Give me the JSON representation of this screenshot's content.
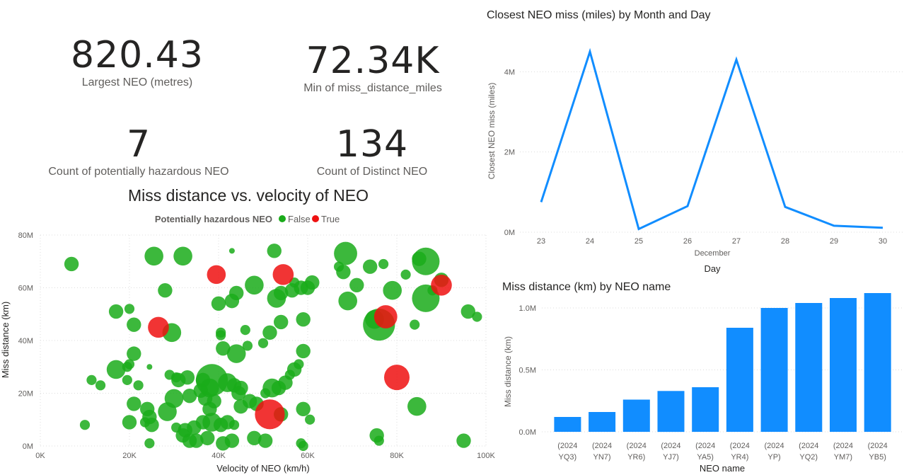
{
  "kpis": {
    "largest": {
      "value": "820.43",
      "label": "Largest NEO (metres)"
    },
    "min_miss": {
      "value": "72.34K",
      "label": "Min of miss_distance_miles"
    },
    "hazardous": {
      "value": "7",
      "label": "Count of potentially hazardous NEO"
    },
    "distinct": {
      "value": "134",
      "label": "Count of Distinct NEO"
    }
  },
  "colors": {
    "false": "#1aab1a",
    "true": "#ee1111",
    "line": "#118dff",
    "bar": "#118dff"
  },
  "chart_data": [
    {
      "type": "scatter",
      "title": "Miss distance vs. velocity of NEO",
      "legend_title": "Potentially hazardous NEO",
      "legend": [
        "False",
        "True"
      ],
      "xlabel": "Velocity of NEO (km/h)",
      "ylabel": "Miss distance (km)",
      "xlim": [
        0,
        100000
      ],
      "ylim": [
        0,
        80000000
      ],
      "x_ticks": [
        "0K",
        "20K",
        "40K",
        "60K",
        "80K",
        "100K"
      ],
      "y_ticks": [
        "0M",
        "20M",
        "40M",
        "60M",
        "80M"
      ],
      "series": [
        {
          "name": "False",
          "points": [
            [
              7000,
              69,
              2
            ],
            [
              25500,
              72,
              3
            ],
            [
              32000,
              72,
              3
            ],
            [
              43000,
              74,
              0
            ],
            [
              52500,
              74,
              2
            ],
            [
              68500,
              73,
              4
            ],
            [
              86500,
              70,
              5
            ],
            [
              85000,
              71,
              2
            ],
            [
              77000,
              69,
              1
            ],
            [
              74000,
              68,
              2
            ],
            [
              82000,
              65,
              1
            ],
            [
              67000,
              68,
              1
            ],
            [
              68000,
              66,
              2
            ],
            [
              71000,
              61,
              2
            ],
            [
              57000,
              62,
              1
            ],
            [
              61000,
              62,
              2
            ],
            [
              60000,
              60,
              2
            ],
            [
              58500,
              60,
              2
            ],
            [
              56500,
              59,
              2
            ],
            [
              54000,
              58,
              2
            ],
            [
              53000,
              56,
              3
            ],
            [
              48000,
              61,
              3
            ],
            [
              44000,
              58,
              2
            ],
            [
              28000,
              59,
              2
            ],
            [
              40000,
              54,
              2
            ],
            [
              43000,
              55,
              2
            ],
            [
              79000,
              59,
              3
            ],
            [
              86500,
              56,
              5
            ],
            [
              88000,
              59,
              1
            ],
            [
              90000,
              63,
              2
            ],
            [
              96000,
              51,
              2
            ],
            [
              98000,
              49,
              1
            ],
            [
              75000,
              48,
              3
            ],
            [
              76000,
              46,
              6
            ],
            [
              84000,
              46,
              1
            ],
            [
              69000,
              55,
              3
            ],
            [
              17000,
              51,
              2
            ],
            [
              20000,
              52,
              1
            ],
            [
              21000,
              46,
              2
            ],
            [
              29500,
              43,
              3
            ],
            [
              40500,
              43,
              1
            ],
            [
              40500,
              42,
              1
            ],
            [
              46000,
              44,
              1
            ],
            [
              51500,
              43,
              2
            ],
            [
              54000,
              47,
              2
            ],
            [
              59000,
              48,
              2
            ],
            [
              46500,
              38,
              1
            ],
            [
              41000,
              37,
              2
            ],
            [
              44000,
              35,
              3
            ],
            [
              50000,
              39,
              1
            ],
            [
              59000,
              36,
              2
            ],
            [
              21000,
              35,
              2
            ],
            [
              17000,
              29,
              3
            ],
            [
              19500,
              30,
              1
            ],
            [
              20000,
              31,
              1
            ],
            [
              24500,
              30,
              0
            ],
            [
              11500,
              25,
              1
            ],
            [
              13500,
              23,
              1
            ],
            [
              19500,
              25,
              1
            ],
            [
              22000,
              23,
              1
            ],
            [
              29000,
              27,
              1
            ],
            [
              30500,
              26,
              1
            ],
            [
              31000,
              25,
              2
            ],
            [
              33000,
              26,
              2
            ],
            [
              36500,
              25,
              2
            ],
            [
              38500,
              25,
              6
            ],
            [
              42000,
              24,
              3
            ],
            [
              43500,
              23,
              2
            ],
            [
              45000,
              22,
              2
            ],
            [
              38000,
              22,
              3
            ],
            [
              36000,
              21,
              2
            ],
            [
              33500,
              19,
              2
            ],
            [
              37000,
              18,
              2
            ],
            [
              39000,
              17,
              2
            ],
            [
              30000,
              18,
              3
            ],
            [
              28500,
              13,
              3
            ],
            [
              21000,
              16,
              2
            ],
            [
              24000,
              14,
              2
            ],
            [
              24500,
              11,
              2
            ],
            [
              23500,
              9,
              1
            ],
            [
              25000,
              8,
              2
            ],
            [
              20000,
              9,
              2
            ],
            [
              10000,
              8,
              1
            ],
            [
              30500,
              7,
              1
            ],
            [
              32500,
              6,
              2
            ],
            [
              34500,
              7,
              2
            ],
            [
              36500,
              9,
              2
            ],
            [
              38500,
              9,
              3
            ],
            [
              40500,
              8,
              2
            ],
            [
              42000,
              9,
              2
            ],
            [
              43500,
              8,
              1
            ],
            [
              45000,
              15,
              2
            ],
            [
              47000,
              17,
              2
            ],
            [
              48500,
              16,
              2
            ],
            [
              50500,
              20,
              1
            ],
            [
              52000,
              22,
              3
            ],
            [
              53500,
              22,
              2
            ],
            [
              55000,
              24,
              2
            ],
            [
              56000,
              27,
              1
            ],
            [
              57000,
              29,
              2
            ],
            [
              58000,
              31,
              1
            ],
            [
              59000,
              14,
              2
            ],
            [
              60500,
              10,
              1
            ],
            [
              54000,
              12,
              2
            ],
            [
              44500,
              20,
              2
            ],
            [
              38000,
              14,
              2
            ],
            [
              32000,
              4,
              2
            ],
            [
              33500,
              2,
              2
            ],
            [
              35000,
              2,
              2
            ],
            [
              37500,
              3,
              2
            ],
            [
              41000,
              1,
              2
            ],
            [
              43000,
              2,
              2
            ],
            [
              48000,
              3,
              2
            ],
            [
              50500,
              2,
              2
            ],
            [
              58500,
              1,
              1
            ],
            [
              59000,
              0,
              1
            ],
            [
              24500,
              1,
              1
            ],
            [
              84500,
              15,
              3
            ],
            [
              75500,
              4,
              2
            ],
            [
              76000,
              2,
              1
            ],
            [
              95000,
              2,
              2
            ]
          ]
        },
        {
          "name": "True",
          "points": [
            [
              39500,
              65,
              3
            ],
            [
              54500,
              65,
              3.5
            ],
            [
              26500,
              45,
              3.5
            ],
            [
              77500,
              49,
              4
            ],
            [
              80000,
              26,
              4.5
            ],
            [
              51500,
              12,
              5.5
            ],
            [
              90000,
              61,
              3.5
            ]
          ]
        }
      ]
    },
    {
      "type": "line",
      "title": "Closest NEO miss (miles) by Month and Day",
      "categories": [
        "23",
        "24",
        "25",
        "26",
        "27",
        "28",
        "29",
        "30"
      ],
      "values": [
        750000,
        4500000,
        80000,
        650000,
        4300000,
        630000,
        160000,
        110000
      ],
      "xlabel": "Day",
      "x_group_label": "December",
      "ylabel": "Closest NEO miss (miles)",
      "ylim": [
        0,
        4500000
      ],
      "y_ticks": [
        "0M",
        "2M",
        "4M"
      ]
    },
    {
      "type": "bar",
      "title": "Miss distance (km) by NEO name",
      "categories": [
        [
          "(2024",
          "YQ3)"
        ],
        [
          "(2024",
          "YN7)"
        ],
        [
          "(2024",
          "YR6)"
        ],
        [
          "(2024",
          "YJ7)"
        ],
        [
          "(2024",
          "YA5)"
        ],
        [
          "(2024",
          "YR4)"
        ],
        [
          "(2024",
          "YP)"
        ],
        [
          "(2024",
          "YQ2)"
        ],
        [
          "(2024",
          "YM7)"
        ],
        [
          "(2024",
          "YB5)"
        ]
      ],
      "values": [
        120000,
        160000,
        260000,
        330000,
        360000,
        840000,
        1000000,
        1040000,
        1080000,
        1120000
      ],
      "xlabel": "NEO name",
      "ylabel": "Miss distance (km)",
      "ylim": [
        0,
        1200000
      ],
      "y_ticks": [
        "0.0M",
        "0.5M",
        "1.0M"
      ]
    }
  ]
}
